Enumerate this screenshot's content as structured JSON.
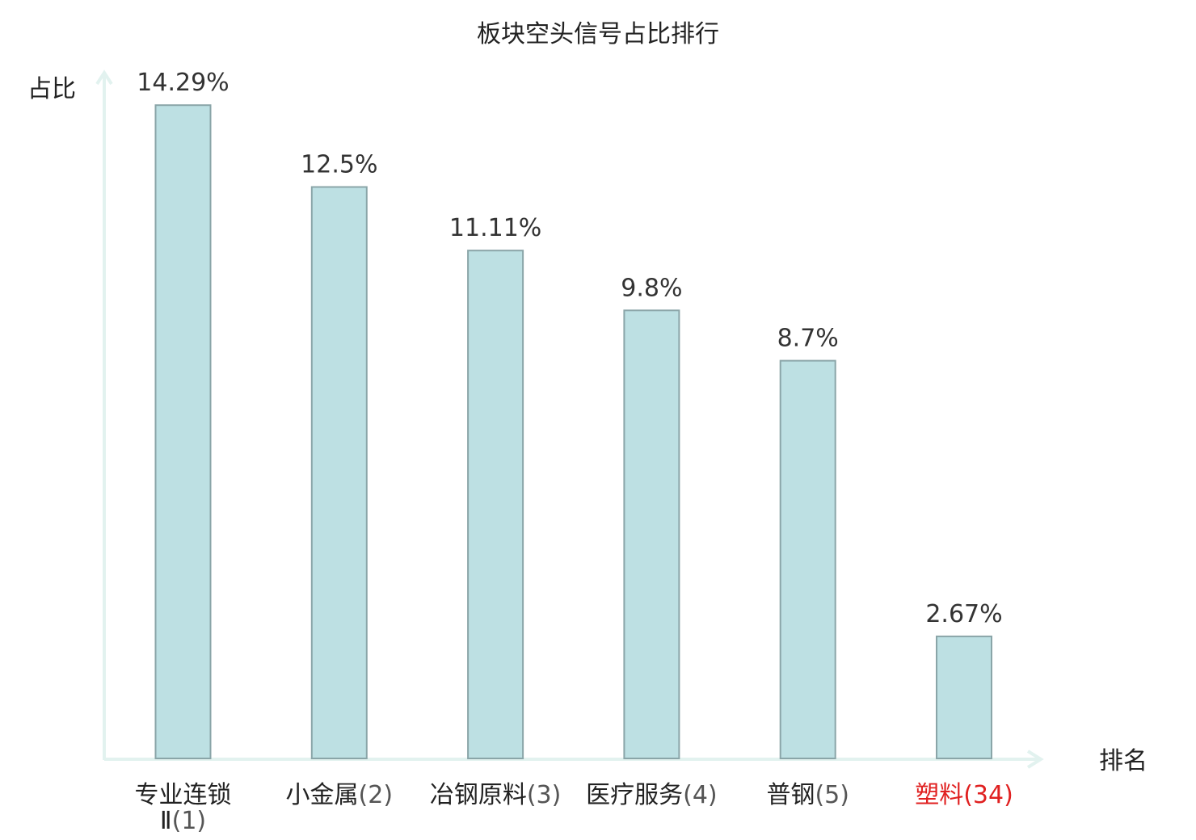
{
  "chart_data": {
    "type": "bar",
    "title": "板块空头信号占比排行",
    "ylabel": "占比",
    "xlabel": "排名",
    "categories": [
      {
        "name": "专业连锁Ⅱ",
        "rank": "(1)",
        "highlight": false
      },
      {
        "name": "小金属",
        "rank": "(2)",
        "highlight": false
      },
      {
        "name": "冶钢原料",
        "rank": "(3)",
        "highlight": false
      },
      {
        "name": "医疗服务",
        "rank": "(4)",
        "highlight": false
      },
      {
        "name": "普钢",
        "rank": "(5)",
        "highlight": false
      },
      {
        "name": "塑料",
        "rank": "(34)",
        "highlight": true
      }
    ],
    "values": [
      14.29,
      12.5,
      11.11,
      9.8,
      8.7,
      2.67
    ],
    "value_labels": [
      "14.29%",
      "12.5%",
      "11.11%",
      "9.8%",
      "8.7%",
      "2.67%"
    ],
    "unit": "%",
    "ylim": [
      0,
      15.0
    ],
    "grid": false,
    "colors": {
      "bar_fill": "#bde0e3",
      "bar_stroke": "#8aa5a8",
      "axis": "#e2f2ef",
      "label_text": "#222222",
      "rank_text": "#555555",
      "highlight_text": "#e02020"
    }
  }
}
